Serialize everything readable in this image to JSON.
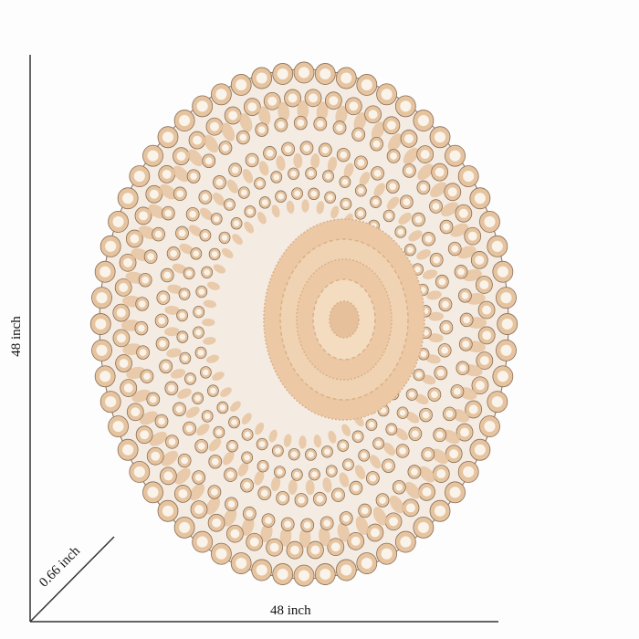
{
  "dimensions": {
    "height": "48 inch",
    "width": "48 inch",
    "depth": "0.66 inch"
  },
  "colors": {
    "wood": "#e6c4a0",
    "whitewash": "#faf3ea",
    "shadow": "#8a6e55",
    "line": "#333333"
  }
}
